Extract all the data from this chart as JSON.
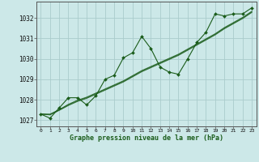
{
  "title": "Graphe pression niveau de la mer (hPa)",
  "background_color": "#cce8e8",
  "grid_color": "#aacccc",
  "line_color": "#1a5c1a",
  "marker_color": "#1a5c1a",
  "xlim": [
    -0.5,
    23.5
  ],
  "ylim": [
    1026.7,
    1032.8
  ],
  "yticks": [
    1027,
    1028,
    1029,
    1030,
    1031,
    1032
  ],
  "xticks": [
    0,
    1,
    2,
    3,
    4,
    5,
    6,
    7,
    8,
    9,
    10,
    11,
    12,
    13,
    14,
    15,
    16,
    17,
    18,
    19,
    20,
    21,
    22,
    23
  ],
  "main_series": [
    1027.3,
    1027.1,
    1027.6,
    1028.1,
    1028.1,
    1027.75,
    1028.2,
    1029.0,
    1029.2,
    1030.05,
    1030.3,
    1031.1,
    1030.5,
    1029.6,
    1029.35,
    1029.25,
    1030.0,
    1030.8,
    1031.3,
    1032.2,
    1032.1,
    1032.2,
    1032.2,
    1032.5
  ],
  "smooth_series1": [
    1027.3,
    1027.28,
    1027.5,
    1027.75,
    1027.95,
    1028.1,
    1028.3,
    1028.5,
    1028.7,
    1028.9,
    1029.15,
    1029.4,
    1029.6,
    1029.8,
    1030.0,
    1030.2,
    1030.45,
    1030.7,
    1030.95,
    1031.2,
    1031.5,
    1031.75,
    1032.0,
    1032.3
  ],
  "smooth_series2": [
    1027.3,
    1027.3,
    1027.52,
    1027.78,
    1027.98,
    1028.13,
    1028.33,
    1028.53,
    1028.73,
    1028.93,
    1029.18,
    1029.43,
    1029.63,
    1029.83,
    1030.03,
    1030.23,
    1030.48,
    1030.73,
    1030.98,
    1031.23,
    1031.53,
    1031.78,
    1032.03,
    1032.33
  ],
  "smooth_series3": [
    1027.3,
    1027.26,
    1027.48,
    1027.72,
    1027.92,
    1028.07,
    1028.27,
    1028.47,
    1028.67,
    1028.87,
    1029.12,
    1029.37,
    1029.57,
    1029.77,
    1029.97,
    1030.17,
    1030.42,
    1030.67,
    1030.92,
    1031.17,
    1031.47,
    1031.72,
    1031.97,
    1032.27
  ]
}
